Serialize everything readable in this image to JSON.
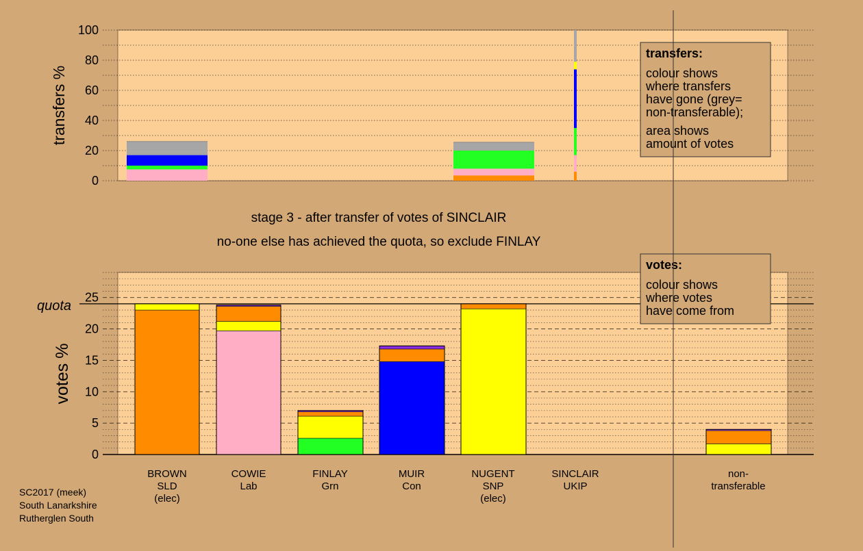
{
  "colors": {
    "background": "#d2a876",
    "plot_bg": "#fccf97",
    "SNP": "#ffff00",
    "Lab": "#ffaec5",
    "SLD": "#ff8c00",
    "Con": "#0000ff",
    "Grn": "#22ff22",
    "UKIP": "#8a2be2",
    "nontransferable": "#a6a6a6"
  },
  "chart_data": [
    {
      "type": "bar",
      "name": "transfers",
      "ylabel": "transfers %",
      "ylim": [
        0,
        100
      ],
      "yticks": [
        "0",
        "20",
        "40",
        "60",
        "80",
        "100"
      ],
      "grid": true,
      "bars": [
        {
          "candidate": "BROWN",
          "segments": [
            {
              "party": "Lab",
              "value": 7.5
            },
            {
              "party": "Grn",
              "value": 2.5
            },
            {
              "party": "Con",
              "value": 7.0
            },
            {
              "party": "nontransferable",
              "value": 2.5
            },
            {
              "party": "nontransferable",
              "value": 6.5
            }
          ]
        },
        {
          "candidate": "NUGENT",
          "segments": [
            {
              "party": "SLD",
              "value": 3.5
            },
            {
              "party": "Lab",
              "value": 4.5
            },
            {
              "party": "Grn",
              "value": 12.0
            },
            {
              "party": "nontransferable",
              "value": 5.5
            }
          ]
        }
      ],
      "sinclair_line": [
        {
          "party": "SLD",
          "value": 6
        },
        {
          "party": "Lab",
          "value": 11
        },
        {
          "party": "Grn",
          "value": 18
        },
        {
          "party": "Con",
          "value": 39
        },
        {
          "party": "SNP",
          "value": 5
        },
        {
          "party": "nontransferable",
          "value": 21
        }
      ],
      "legend": {
        "title": "transfers:",
        "lines": [
          "colour shows",
          "where transfers",
          "have gone (grey=",
          "non-transferable);"
        ],
        "lines2": [
          "area shows",
          "amount of votes"
        ]
      }
    },
    {
      "type": "bar",
      "name": "votes",
      "ylabel": "votes %",
      "ylim": [
        0,
        29
      ],
      "yticks": [
        "0",
        "5",
        "10",
        "15",
        "20",
        "25"
      ],
      "quota": 24.0,
      "quota_label": "quota",
      "grid": true,
      "bars": [
        {
          "label": [
            "BROWN",
            "SLD",
            "(elec)"
          ],
          "segments": [
            {
              "party": "SLD",
              "value": 23.0
            },
            {
              "party": "SNP",
              "value": 1.0
            }
          ]
        },
        {
          "label": [
            "COWIE",
            "Lab"
          ],
          "segments": [
            {
              "party": "Lab",
              "value": 19.7
            },
            {
              "party": "SNP",
              "value": 1.5
            },
            {
              "party": "SLD",
              "value": 2.4
            },
            {
              "party": "UKIP",
              "value": 0.2
            }
          ]
        },
        {
          "label": [
            "FINLAY",
            "Grn"
          ],
          "segments": [
            {
              "party": "Grn",
              "value": 2.6
            },
            {
              "party": "SNP",
              "value": 3.5
            },
            {
              "party": "SLD",
              "value": 0.7
            },
            {
              "party": "UKIP",
              "value": 0.2
            }
          ]
        },
        {
          "label": [
            "MUIR",
            "Con"
          ],
          "segments": [
            {
              "party": "Con",
              "value": 14.8
            },
            {
              "party": "SLD",
              "value": 2.0
            },
            {
              "party": "UKIP",
              "value": 0.5
            }
          ]
        },
        {
          "label": [
            "NUGENT",
            "SNP",
            "(elec)"
          ],
          "segments": [
            {
              "party": "SNP",
              "value": 23.2
            },
            {
              "party": "SLD",
              "value": 0.8
            }
          ]
        },
        {
          "label": [
            "SINCLAIR",
            "UKIP"
          ],
          "segments": [
            {
              "party": "UKIP",
              "value": 0.0
            }
          ]
        },
        {
          "label": [
            "non-",
            "transferable"
          ],
          "segments": [
            {
              "party": "SNP",
              "value": 1.7
            },
            {
              "party": "SLD",
              "value": 2.1
            },
            {
              "party": "UKIP",
              "value": 0.2
            }
          ]
        }
      ],
      "legend": {
        "title": "votes:",
        "lines": [
          "colour shows",
          "where votes",
          "have come from"
        ]
      }
    }
  ],
  "titles": {
    "stage": "stage 3 - after transfer of votes of SINCLAIR",
    "note": "no-one else has achieved the quota, so exclude FINLAY"
  },
  "footer": [
    "SC2017 (meek)",
    "South Lanarkshire",
    "Rutherglen South"
  ]
}
